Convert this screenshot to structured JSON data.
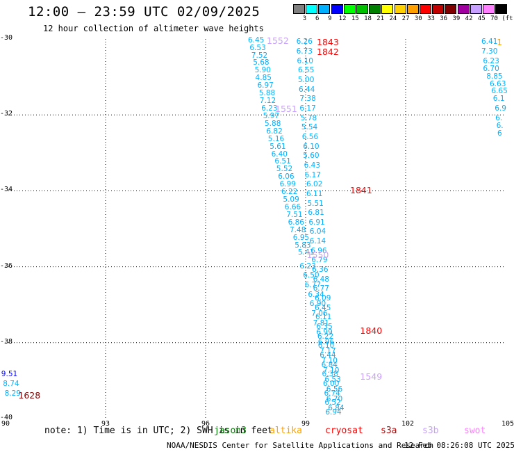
{
  "title": "12:00 – 23:59 UTC 02/09/2025",
  "subtitle": "12 hour collection of altimeter wave heights",
  "legend": {
    "unit": "(ft)",
    "bins": [
      {
        "label": "3",
        "color": "#808080"
      },
      {
        "label": "6",
        "color": "#00ffff"
      },
      {
        "label": "9",
        "color": "#00b0ff"
      },
      {
        "label": "12",
        "color": "#0000ff"
      },
      {
        "label": "15",
        "color": "#00ff00"
      },
      {
        "label": "18",
        "color": "#00c000"
      },
      {
        "label": "21",
        "color": "#008000"
      },
      {
        "label": "24",
        "color": "#ffff00"
      },
      {
        "label": "27",
        "color": "#ffd000"
      },
      {
        "label": "30",
        "color": "#ffa000"
      },
      {
        "label": "33",
        "color": "#ff0000"
      },
      {
        "label": "36",
        "color": "#c00000"
      },
      {
        "label": "39",
        "color": "#800000"
      },
      {
        "label": "42",
        "color": "#a000a0"
      },
      {
        "label": "45",
        "color": "#c8a0ff"
      },
      {
        "label": "70",
        "color": "#ff80ff"
      },
      {
        "label": "",
        "color": "#000000"
      }
    ]
  },
  "axes": {
    "lon_ticks": [
      "90",
      "93",
      "96",
      "99",
      "102",
      "105"
    ],
    "lat_ticks": [
      "-30",
      "-32",
      "-34",
      "-36",
      "-38",
      "-40"
    ]
  },
  "chart_data": {
    "type": "scatter",
    "lon_range": [
      90,
      105
    ],
    "lat_range": [
      -40,
      -30
    ],
    "hour_labels": [
      {
        "text": "1552",
        "lon": 98.0,
        "lat": -30.05,
        "color": "#c8a0ff"
      },
      {
        "text": "1551",
        "lon": 98.25,
        "lat": -31.85,
        "color": "#c8a0ff"
      },
      {
        "text": "1550",
        "lon": 99.2,
        "lat": -35.7,
        "color": "#c8a0ff"
      },
      {
        "text": "1549",
        "lon": 100.8,
        "lat": -38.9,
        "color": "#c8a0ff"
      },
      {
        "text": "1843",
        "lon": 99.5,
        "lat": -30.1,
        "color": "#ff0000"
      },
      {
        "text": "1842",
        "lon": 99.5,
        "lat": -30.35,
        "color": "#ff0000"
      },
      {
        "text": "1841",
        "lon": 100.5,
        "lat": -34.0,
        "color": "#ff0000"
      },
      {
        "text": "1840",
        "lon": 100.8,
        "lat": -37.7,
        "color": "#ff0000"
      },
      {
        "text": "1628",
        "lon": 90.55,
        "lat": -39.4,
        "color": "#800000"
      },
      {
        "text": "1",
        "lon": 104.9,
        "lat": -30.1,
        "color": "#ffa000"
      }
    ],
    "tracks": [
      {
        "name": "track-1552",
        "color": "#00b0ff",
        "points": [
          {
            "lon": 97.5,
            "lat": -30.05,
            "v": "6.45"
          },
          {
            "lon": 97.55,
            "lat": -30.25,
            "v": "6.53"
          },
          {
            "lon": 97.6,
            "lat": -30.45,
            "v": "7.52"
          },
          {
            "lon": 97.65,
            "lat": -30.65,
            "v": "5.68"
          },
          {
            "lon": 97.7,
            "lat": -30.85,
            "v": "5.90"
          },
          {
            "lon": 97.72,
            "lat": -31.05,
            "v": "4.85"
          },
          {
            "lon": 97.78,
            "lat": -31.25,
            "v": "6.97"
          },
          {
            "lon": 97.83,
            "lat": -31.45,
            "v": "5.88"
          },
          {
            "lon": 97.85,
            "lat": -31.65,
            "v": "7.12"
          },
          {
            "lon": 97.9,
            "lat": -31.85,
            "v": "6.23"
          },
          {
            "lon": 97.95,
            "lat": -32.05,
            "v": "5.97"
          },
          {
            "lon": 98.0,
            "lat": -32.25,
            "v": "5.88"
          },
          {
            "lon": 98.05,
            "lat": -32.45,
            "v": "6.82"
          },
          {
            "lon": 98.1,
            "lat": -32.65,
            "v": "5.16"
          },
          {
            "lon": 98.15,
            "lat": -32.85,
            "v": "5.61"
          },
          {
            "lon": 98.2,
            "lat": -33.05,
            "v": "6.40"
          },
          {
            "lon": 98.3,
            "lat": -33.25,
            "v": "6.51"
          },
          {
            "lon": 98.35,
            "lat": -33.45,
            "v": "5.52"
          },
          {
            "lon": 98.4,
            "lat": -33.65,
            "v": "6.06"
          },
          {
            "lon": 98.45,
            "lat": -33.85,
            "v": "6.99"
          },
          {
            "lon": 98.5,
            "lat": -34.05,
            "v": "6.22"
          },
          {
            "lon": 98.55,
            "lat": -34.25,
            "v": "5.09"
          },
          {
            "lon": 98.6,
            "lat": -34.45,
            "v": "6.66"
          },
          {
            "lon": 98.65,
            "lat": -34.65,
            "v": "7.51"
          },
          {
            "lon": 98.7,
            "lat": -34.85,
            "v": "6.86"
          },
          {
            "lon": 98.75,
            "lat": -35.05,
            "v": "7.48"
          },
          {
            "lon": 98.85,
            "lat": -35.25,
            "v": "6.95"
          },
          {
            "lon": 98.9,
            "lat": -35.45,
            "v": "5.83"
          },
          {
            "lon": 99.0,
            "lat": -35.65,
            "v": "5.41"
          }
        ]
      },
      {
        "name": "track-1843",
        "color": "#00b0ff",
        "points": [
          {
            "lon": 98.95,
            "lat": -30.1,
            "v": "6.26"
          },
          {
            "lon": 98.95,
            "lat": -30.35,
            "v": "6.73"
          },
          {
            "lon": 98.97,
            "lat": -30.6,
            "v": "6.10"
          },
          {
            "lon": 99.0,
            "lat": -30.85,
            "v": "6.55"
          },
          {
            "lon": 99.0,
            "lat": -31.1,
            "v": "5.00"
          },
          {
            "lon": 99.02,
            "lat": -31.35,
            "v": "6.44"
          },
          {
            "lon": 99.05,
            "lat": -31.6,
            "v": "7.38"
          },
          {
            "lon": 99.05,
            "lat": -31.85,
            "v": "6.17"
          },
          {
            "lon": 99.08,
            "lat": -32.1,
            "v": "5.78"
          },
          {
            "lon": 99.1,
            "lat": -32.35,
            "v": "5.54"
          },
          {
            "lon": 99.12,
            "lat": -32.6,
            "v": "6.56"
          },
          {
            "lon": 99.15,
            "lat": -32.85,
            "v": "6.10"
          },
          {
            "lon": 99.15,
            "lat": -33.1,
            "v": "5.60"
          },
          {
            "lon": 99.18,
            "lat": -33.35,
            "v": "6.43"
          },
          {
            "lon": 99.2,
            "lat": -33.6,
            "v": "6.17"
          },
          {
            "lon": 99.25,
            "lat": -33.85,
            "v": "6.02"
          },
          {
            "lon": 99.25,
            "lat": -34.1,
            "v": "6.11"
          },
          {
            "lon": 99.28,
            "lat": -34.35,
            "v": "5.51"
          },
          {
            "lon": 99.3,
            "lat": -34.6,
            "v": "6.81"
          },
          {
            "lon": 99.32,
            "lat": -34.85,
            "v": "6.91"
          },
          {
            "lon": 99.35,
            "lat": -35.1,
            "v": "6.04"
          },
          {
            "lon": 99.35,
            "lat": -35.35,
            "v": "6.14"
          },
          {
            "lon": 99.38,
            "lat": -35.6,
            "v": "6.96"
          },
          {
            "lon": 99.4,
            "lat": -35.85,
            "v": "6.79"
          },
          {
            "lon": 99.42,
            "lat": -36.1,
            "v": "6.36"
          },
          {
            "lon": 99.45,
            "lat": -36.35,
            "v": "6.48"
          },
          {
            "lon": 99.45,
            "lat": -36.6,
            "v": "6.77"
          },
          {
            "lon": 99.5,
            "lat": -36.85,
            "v": "6.09"
          },
          {
            "lon": 99.5,
            "lat": -37.1,
            "v": "6.45"
          },
          {
            "lon": 99.52,
            "lat": -37.35,
            "v": "6.11"
          },
          {
            "lon": 99.55,
            "lat": -37.6,
            "v": "6.35"
          },
          {
            "lon": 99.58,
            "lat": -37.85,
            "v": "6.22"
          },
          {
            "lon": 99.6,
            "lat": -38.1,
            "v": "6.10"
          },
          {
            "lon": 99.65,
            "lat": -38.35,
            "v": "6.44"
          },
          {
            "lon": 99.7,
            "lat": -38.6,
            "v": "6.84"
          },
          {
            "lon": 99.72,
            "lat": -38.85,
            "v": "6.38"
          },
          {
            "lon": 99.75,
            "lat": -39.1,
            "v": "6.00"
          },
          {
            "lon": 99.78,
            "lat": -39.35,
            "v": "6.74"
          },
          {
            "lon": 99.8,
            "lat": -39.6,
            "v": "6.52"
          },
          {
            "lon": 99.82,
            "lat": -39.85,
            "v": "6.94"
          }
        ]
      },
      {
        "name": "track-1840-lower",
        "color": "#00b0ff",
        "points": [
          {
            "lon": 99.05,
            "lat": -36.0,
            "v": "6.23"
          },
          {
            "lon": 99.15,
            "lat": -36.25,
            "v": "6.50"
          },
          {
            "lon": 99.2,
            "lat": -36.5,
            "v": "6.77"
          },
          {
            "lon": 99.3,
            "lat": -36.75,
            "v": "6.34"
          },
          {
            "lon": 99.35,
            "lat": -37.0,
            "v": "6.90"
          },
          {
            "lon": 99.4,
            "lat": -37.25,
            "v": "7.06"
          },
          {
            "lon": 99.45,
            "lat": -37.5,
            "v": "7.81"
          },
          {
            "lon": 99.55,
            "lat": -37.75,
            "v": "6.99"
          },
          {
            "lon": 99.6,
            "lat": -38.0,
            "v": "6.96"
          },
          {
            "lon": 99.65,
            "lat": -38.25,
            "v": "7.17"
          },
          {
            "lon": 99.7,
            "lat": -38.5,
            "v": "7.10"
          },
          {
            "lon": 99.75,
            "lat": -38.75,
            "v": "7.10"
          },
          {
            "lon": 99.8,
            "lat": -39.0,
            "v": "6.53"
          },
          {
            "lon": 99.85,
            "lat": -39.25,
            "v": "6.56"
          },
          {
            "lon": 99.85,
            "lat": -39.5,
            "v": "6.70"
          },
          {
            "lon": 99.9,
            "lat": -39.75,
            "v": "6.84"
          }
        ]
      },
      {
        "name": "track-1628",
        "color": "#00b0ff",
        "points": [
          {
            "lon": 90.1,
            "lat": -38.85,
            "v": "9.51",
            "c": "#0000ff"
          },
          {
            "lon": 90.15,
            "lat": -39.1,
            "v": "8.74"
          },
          {
            "lon": 90.2,
            "lat": -39.35,
            "v": "8.29"
          }
        ]
      },
      {
        "name": "track-east",
        "color": "#00b0ff",
        "points": [
          {
            "lon": 104.5,
            "lat": -30.1,
            "v": "6.41"
          },
          {
            "lon": 104.5,
            "lat": -30.35,
            "v": "7.30"
          },
          {
            "lon": 104.55,
            "lat": -30.6,
            "v": "6.23"
          },
          {
            "lon": 104.55,
            "lat": -30.8,
            "v": "6.70"
          },
          {
            "lon": 104.65,
            "lat": -31.0,
            "v": "8.85"
          },
          {
            "lon": 104.75,
            "lat": -31.2,
            "v": "6.63"
          },
          {
            "lon": 104.8,
            "lat": -31.4,
            "v": "6.65"
          },
          {
            "lon": 104.85,
            "lat": -31.6,
            "v": "6.1"
          },
          {
            "lon": 104.9,
            "lat": -31.85,
            "v": "6.9"
          },
          {
            "lon": 104.92,
            "lat": -32.1,
            "v": "6."
          },
          {
            "lon": 104.95,
            "lat": -32.3,
            "v": "6."
          },
          {
            "lon": 104.98,
            "lat": -32.5,
            "v": "6"
          }
        ]
      }
    ]
  },
  "footer": {
    "note": "note:  1) Time is in UTC;  2) SWH is in feet",
    "satellites": [
      {
        "name": "jason3",
        "color": "#008000"
      },
      {
        "name": "altika",
        "color": "#ffa000"
      },
      {
        "name": "cryosat",
        "color": "#ff0000"
      },
      {
        "name": "s3a",
        "color": "#c00000"
      },
      {
        "name": "s3b",
        "color": "#c8a0ff"
      },
      {
        "name": "swot",
        "color": "#ff80ff"
      }
    ],
    "credit": "NOAA/NESDIS Center for Satellite Applications and Research",
    "timestamp": "12 Feb 08:26:08 UTC 2025"
  }
}
